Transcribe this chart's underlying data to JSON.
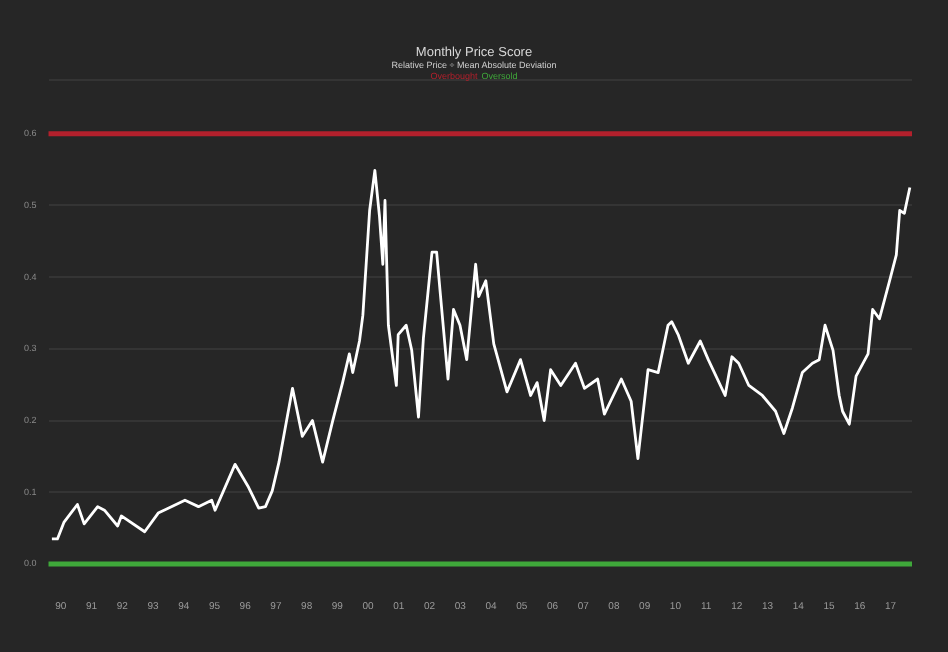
{
  "chart_data": {
    "type": "line",
    "title": "Monthly Price Score",
    "subtitle": "Relative Price ÷ Mean Absolute Deviation",
    "series": [
      {
        "color": "#ffffff",
        "x": [
          1989.71,
          1989.89,
          1990.1,
          1990.54,
          1990.76,
          1991.2,
          1991.42,
          1991.85,
          1991.97,
          1992.73,
          1993.17,
          1994.04,
          1994.48,
          1994.91,
          1995.02,
          1995.67,
          1996.11,
          1996.44,
          1996.66,
          1996.88,
          1997.1,
          1997.54,
          1997.86,
          1998.19,
          1998.52,
          1998.85,
          1999.17,
          1999.39,
          1999.5,
          1999.72,
          1999.83,
          2000.05,
          2000.22,
          2000.37,
          2000.48,
          2000.55,
          2000.66,
          2000.92,
          2000.98,
          2001.24,
          2001.42,
          2001.64,
          2001.8,
          2002.08,
          2002.23,
          2002.34,
          2002.6,
          2002.78,
          2002.99,
          2003.21,
          2003.5,
          2003.6,
          2003.83,
          2004.09,
          2004.52,
          2004.96,
          2005.29,
          2005.5,
          2005.73,
          2005.94,
          2006.27,
          2006.75,
          2007.04,
          2007.47,
          2007.69,
          2008.24,
          2008.56,
          2008.78,
          2009.11,
          2009.44,
          2009.76,
          2009.88,
          2010.09,
          2010.42,
          2010.81,
          2011.07,
          2011.62,
          2011.84,
          2012.06,
          2012.39,
          2012.83,
          2013.26,
          2013.53,
          2013.81,
          2014.13,
          2014.46,
          2014.68,
          2014.87,
          2015.13,
          2015.33,
          2015.44,
          2015.66,
          2015.88,
          2016.27,
          2016.42,
          2016.64,
          2016.97,
          2017.19,
          2017.3,
          2017.45,
          2017.63
        ],
        "values": [
          0.035,
          0.035,
          0.058,
          0.083,
          0.056,
          0.08,
          0.075,
          0.053,
          0.067,
          0.045,
          0.071,
          0.089,
          0.08,
          0.089,
          0.075,
          0.139,
          0.107,
          0.078,
          0.08,
          0.102,
          0.142,
          0.245,
          0.178,
          0.2,
          0.142,
          0.2,
          0.253,
          0.293,
          0.267,
          0.311,
          0.347,
          0.493,
          0.549,
          0.485,
          0.418,
          0.507,
          0.333,
          0.249,
          0.32,
          0.333,
          0.298,
          0.205,
          0.315,
          0.435,
          0.435,
          0.382,
          0.258,
          0.355,
          0.333,
          0.285,
          0.418,
          0.373,
          0.395,
          0.307,
          0.24,
          0.285,
          0.235,
          0.253,
          0.2,
          0.271,
          0.249,
          0.28,
          0.245,
          0.258,
          0.209,
          0.258,
          0.227,
          0.147,
          0.271,
          0.267,
          0.333,
          0.338,
          0.32,
          0.28,
          0.311,
          0.285,
          0.235,
          0.289,
          0.28,
          0.249,
          0.235,
          0.213,
          0.182,
          0.218,
          0.267,
          0.28,
          0.285,
          0.333,
          0.298,
          0.235,
          0.213,
          0.195,
          0.262,
          0.293,
          0.355,
          0.342,
          0.395,
          0.431,
          0.493,
          0.489,
          0.525
        ]
      }
    ],
    "xlim": [
      1989.6,
      2017.7
    ],
    "xticks": [
      {
        "value": 1990,
        "label": "90"
      },
      {
        "value": 1991,
        "label": "91"
      },
      {
        "value": 1992,
        "label": "92"
      },
      {
        "value": 1993,
        "label": "93"
      },
      {
        "value": 1994,
        "label": "94"
      },
      {
        "value": 1995,
        "label": "95"
      },
      {
        "value": 1996,
        "label": "96"
      },
      {
        "value": 1997,
        "label": "97"
      },
      {
        "value": 1998,
        "label": "98"
      },
      {
        "value": 1999,
        "label": "99"
      },
      {
        "value": 2000,
        "label": "00"
      },
      {
        "value": 2001,
        "label": "01"
      },
      {
        "value": 2002,
        "label": "02"
      },
      {
        "value": 2003,
        "label": "03"
      },
      {
        "value": 2004,
        "label": "04"
      },
      {
        "value": 2005,
        "label": "05"
      },
      {
        "value": 2006,
        "label": "06"
      },
      {
        "value": 2007,
        "label": "07"
      },
      {
        "value": 2008,
        "label": "08"
      },
      {
        "value": 2009,
        "label": "09"
      },
      {
        "value": 2010,
        "label": "10"
      },
      {
        "value": 2011,
        "label": "11"
      },
      {
        "value": 2012,
        "label": "12"
      },
      {
        "value": 2013,
        "label": "13"
      },
      {
        "value": 2014,
        "label": "14"
      },
      {
        "value": 2015,
        "label": "15"
      },
      {
        "value": 2016,
        "label": "16"
      },
      {
        "value": 2017,
        "label": "17"
      }
    ],
    "ylim": [
      0,
      0.675
    ],
    "yticks": [
      {
        "value": 0,
        "label": "0.0"
      },
      {
        "value": 0.1,
        "label": "0.1"
      },
      {
        "value": 0.2,
        "label": "0.2"
      },
      0.3,
      0.4,
      0.5,
      0.6,
      {
        "value": 0.675,
        "label": null
      }
    ],
    "grid": "y",
    "legend": false,
    "marker": "none",
    "line_style": "solid",
    "ref_lines": [
      {
        "axis": "y",
        "value": 0.6,
        "label": "Overbought",
        "color": "#b3202c"
      },
      {
        "axis": "y",
        "value": 0,
        "label": "Oversold",
        "color": "#3fa83a"
      }
    ]
  }
}
